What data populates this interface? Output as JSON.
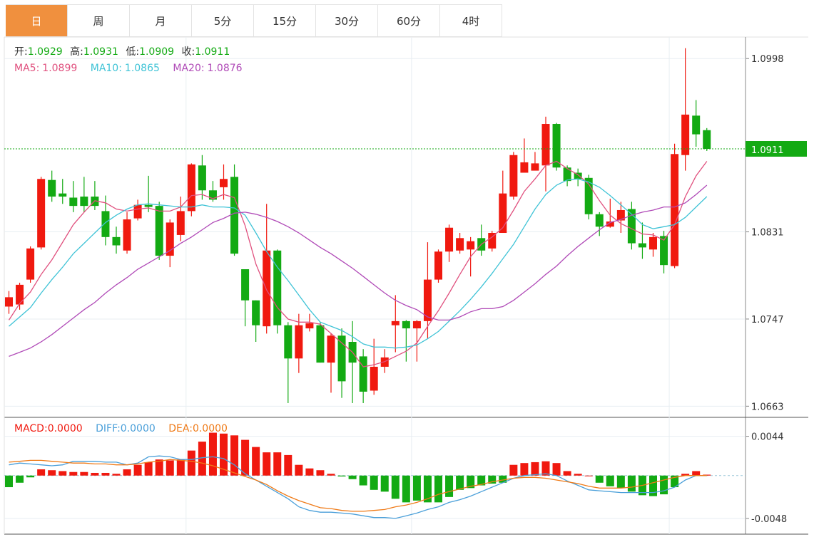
{
  "tabs": [
    {
      "label": "日",
      "active": true
    },
    {
      "label": "周",
      "active": false
    },
    {
      "label": "月",
      "active": false
    },
    {
      "label": "5分",
      "active": false
    },
    {
      "label": "15分",
      "active": false
    },
    {
      "label": "30分",
      "active": false
    },
    {
      "label": "60分",
      "active": false
    },
    {
      "label": "4时",
      "active": false
    }
  ],
  "colors": {
    "accent": "#f0903e",
    "up": "#f0190f",
    "down": "#13aa13",
    "ma5": "#e0507e",
    "ma10": "#3fc3d6",
    "ma20": "#b04ab7",
    "diff": "#4a9fd9",
    "dea": "#ef7a17",
    "last_price": "#13aa13"
  },
  "info": {
    "open_label": "开:",
    "open_value": "1.0929",
    "high_label": "高:",
    "high_value": "1.0931",
    "low_label": "低:",
    "low_value": "1.0909",
    "close_label": "收:",
    "close_value": "1.0911",
    "ma5_label": "MA5:",
    "ma5_value": "1.0899",
    "ma10_label": "MA10:",
    "ma10_value": "1.0865",
    "ma20_label": "MA20:",
    "ma20_value": "1.0876"
  },
  "macd_info": {
    "macd_label": "MACD:",
    "macd_value": "0.0000",
    "diff_label": "DIFF:",
    "diff_value": "0.0000",
    "dea_label": "DEA:",
    "dea_value": "0.0000"
  },
  "chart_data": [
    {
      "type": "candlestick",
      "yticks": [
        "1.0998",
        "1.0831",
        "1.0747",
        "1.0663"
      ],
      "ylim": [
        1.0655,
        1.1016
      ],
      "last_price": 1.0911,
      "last_price_label": "1.0911",
      "candles": [
        [
          1.0759,
          1.0768,
          1.0752,
          1.0774
        ],
        [
          1.0761,
          1.078,
          1.0756,
          1.0782
        ],
        [
          1.0785,
          1.0815,
          1.0782,
          1.0817
        ],
        [
          1.0816,
          1.0882,
          1.0814,
          1.0884
        ],
        [
          1.0881,
          1.0865,
          1.086,
          1.089
        ],
        [
          1.0868,
          1.0865,
          1.0858,
          1.0882
        ],
        [
          1.0864,
          1.0856,
          1.085,
          1.088
        ],
        [
          1.0865,
          1.0856,
          1.085,
          1.0884
        ],
        [
          1.0865,
          1.0856,
          1.0852,
          1.088
        ],
        [
          1.0851,
          1.0826,
          1.0818,
          1.0866
        ],
        [
          1.0826,
          1.0818,
          1.081,
          1.0836
        ],
        [
          1.0813,
          1.0843,
          1.081,
          1.085
        ],
        [
          1.0844,
          1.0857,
          1.0842,
          1.0862
        ],
        [
          1.0857,
          1.0855,
          1.085,
          1.0885
        ],
        [
          1.0856,
          1.0808,
          1.0804,
          1.086
        ],
        [
          1.0808,
          1.084,
          1.0797,
          1.0843
        ],
        [
          1.0828,
          1.0851,
          1.0822,
          1.0865
        ],
        [
          1.0851,
          1.0896,
          1.0846,
          1.0897
        ],
        [
          1.0895,
          1.0871,
          1.0862,
          1.0905
        ],
        [
          1.0871,
          1.0862,
          1.086,
          1.088
        ],
        [
          1.0874,
          1.0882,
          1.0862,
          1.0896
        ],
        [
          1.0884,
          1.081,
          1.0808,
          1.0896
        ],
        [
          1.0795,
          1.0765,
          1.074,
          1.0795
        ],
        [
          1.0765,
          1.0741,
          1.0725,
          1.0765
        ],
        [
          1.074,
          1.0813,
          1.0733,
          1.0858
        ],
        [
          1.0813,
          1.0741,
          1.0733,
          1.0814
        ],
        [
          1.0741,
          1.0709,
          1.0666,
          1.0744
        ],
        [
          1.0709,
          1.0741,
          1.0695,
          1.0752
        ],
        [
          1.0738,
          1.0743,
          1.0735,
          1.0752
        ],
        [
          1.0741,
          1.0705,
          1.0705,
          1.0744
        ],
        [
          1.0705,
          1.0731,
          1.0676,
          1.0733
        ],
        [
          1.0731,
          1.0687,
          1.0671,
          1.0738
        ],
        [
          1.0725,
          1.0705,
          1.0666,
          1.0745
        ],
        [
          1.0711,
          1.0677,
          1.0666,
          1.0718
        ],
        [
          1.0678,
          1.0701,
          1.0674,
          1.0728
        ],
        [
          1.0701,
          1.071,
          1.0695,
          1.0718
        ],
        [
          1.0741,
          1.0745,
          1.0715,
          1.077
        ],
        [
          1.0745,
          1.0738,
          1.0706,
          1.0746
        ],
        [
          1.0738,
          1.0745,
          1.0706,
          1.0746
        ],
        [
          1.0745,
          1.0785,
          1.0728,
          1.0821
        ],
        [
          1.0785,
          1.0812,
          1.0782,
          1.0814
        ],
        [
          1.0812,
          1.0835,
          1.0802,
          1.0838
        ],
        [
          1.0813,
          1.0825,
          1.081,
          1.083
        ],
        [
          1.0814,
          1.0822,
          1.0788,
          1.0826
        ],
        [
          1.0825,
          1.0813,
          1.0808,
          1.0838
        ],
        [
          1.0815,
          1.083,
          1.0812,
          1.0832
        ],
        [
          1.083,
          1.0868,
          1.083,
          1.089
        ],
        [
          1.0865,
          1.0905,
          1.0862,
          1.0908
        ],
        [
          1.0888,
          1.0898,
          1.0888,
          1.0921
        ],
        [
          1.089,
          1.0897,
          1.0891,
          1.0908
        ],
        [
          1.0895,
          1.0935,
          1.087,
          1.0942
        ],
        [
          1.0935,
          1.0893,
          1.089,
          1.0936
        ],
        [
          1.0893,
          1.088,
          1.0875,
          1.0895
        ],
        [
          1.0888,
          1.0882,
          1.0875,
          1.0892
        ],
        [
          1.0883,
          1.0848,
          1.0843,
          1.0886
        ],
        [
          1.0848,
          1.0836,
          1.0827,
          1.085
        ],
        [
          1.0836,
          1.0841,
          1.0835,
          1.0863
        ],
        [
          1.0842,
          1.0852,
          1.083,
          1.086
        ],
        [
          1.0853,
          1.082,
          1.0814,
          1.086
        ],
        [
          1.082,
          1.0816,
          1.0805,
          1.084
        ],
        [
          1.0814,
          1.0826,
          1.0807,
          1.083
        ],
        [
          1.0827,
          1.0799,
          1.0791,
          1.0832
        ],
        [
          1.0798,
          1.0906,
          1.0796,
          1.0916
        ],
        [
          1.0905,
          1.0944,
          1.089,
          1.1008
        ],
        [
          1.0943,
          1.0925,
          1.0913,
          1.0958
        ],
        [
          1.0929,
          1.0911,
          1.0909,
          1.0931
        ]
      ],
      "series": [
        {
          "name": "MA5",
          "values": [
            1.0746,
            1.0762,
            1.0773,
            1.079,
            1.0804,
            1.0821,
            1.0838,
            1.085,
            1.0861,
            1.0859,
            1.0853,
            1.0851,
            1.0853,
            1.0854,
            1.0851,
            1.0851,
            1.0855,
            1.0866,
            1.0867,
            1.0863,
            1.0867,
            1.0864,
            1.0837,
            1.08,
            1.0775,
            1.0758,
            1.0747,
            1.0744,
            1.0744,
            1.0742,
            1.0733,
            1.0724,
            1.0715,
            1.0701,
            1.0703,
            1.0706,
            1.0711,
            1.0716,
            1.0724,
            1.074,
            1.0755,
            1.0772,
            1.079,
            1.0807,
            1.0819,
            1.0826,
            1.0835,
            1.0852,
            1.087,
            1.0882,
            1.0895,
            1.0899,
            1.0892,
            1.0886,
            1.0877,
            1.0861,
            1.0847,
            1.0839,
            1.0834,
            1.0829,
            1.0828,
            1.0823,
            1.0838,
            1.0865,
            1.0885,
            1.0899
          ]
        },
        {
          "name": "MA10",
          "values": [
            1.074,
            1.0749,
            1.0758,
            1.0772,
            1.0785,
            1.0797,
            1.081,
            1.082,
            1.083,
            1.084,
            1.0847,
            1.0853,
            1.0857,
            1.0858,
            1.0857,
            1.0856,
            1.0855,
            1.0855,
            1.0857,
            1.0855,
            1.0855,
            1.0854,
            1.0847,
            1.083,
            1.0812,
            1.0797,
            1.0784,
            1.077,
            1.0756,
            1.0744,
            1.074,
            1.0736,
            1.073,
            1.0723,
            1.072,
            1.072,
            1.0719,
            1.072,
            1.0722,
            1.0728,
            1.0735,
            1.0745,
            1.0755,
            1.0766,
            1.0778,
            1.0791,
            1.0805,
            1.0819,
            1.0836,
            1.0853,
            1.0867,
            1.0876,
            1.0881,
            1.0882,
            1.0879,
            1.0874,
            1.0866,
            1.0857,
            1.0848,
            1.0838,
            1.0834,
            1.0836,
            1.0838,
            1.0845,
            1.0855,
            1.0865
          ]
        },
        {
          "name": "MA20",
          "values": [
            1.0711,
            1.0715,
            1.0719,
            1.0725,
            1.0732,
            1.074,
            1.0748,
            1.0756,
            1.0763,
            1.0772,
            1.078,
            1.0787,
            1.0795,
            1.0801,
            1.0807,
            1.0813,
            1.082,
            1.0826,
            1.0833,
            1.084,
            1.0844,
            1.0849,
            1.085,
            1.0848,
            1.0845,
            1.0841,
            1.0836,
            1.083,
            1.0823,
            1.0816,
            1.081,
            1.0803,
            1.0796,
            1.0788,
            1.078,
            1.0772,
            1.0765,
            1.076,
            1.0756,
            1.0749,
            1.0746,
            1.0746,
            1.0749,
            1.0754,
            1.0757,
            1.0757,
            1.0759,
            1.0765,
            1.0773,
            1.0781,
            1.079,
            1.0798,
            1.0808,
            1.0817,
            1.0825,
            1.0833,
            1.084,
            1.0843,
            1.0847,
            1.085,
            1.0852,
            1.0855,
            1.0855,
            1.0859,
            1.0867,
            1.0876
          ]
        }
      ]
    },
    {
      "type": "macd",
      "yticks": [
        "0.0044",
        "-0.0048"
      ],
      "ylim": [
        -0.0064,
        0.0062
      ],
      "zero": 0.0,
      "histogram": [
        -0.0013,
        -0.0008,
        -0.0002,
        0.0007,
        0.0006,
        0.0005,
        0.0004,
        0.0004,
        0.0003,
        0.0003,
        0.0002,
        0.0007,
        0.0012,
        0.0015,
        0.0018,
        0.0017,
        0.0018,
        0.0028,
        0.0038,
        0.0048,
        0.0047,
        0.0045,
        0.004,
        0.0032,
        0.0026,
        0.0026,
        0.0023,
        0.0012,
        0.0008,
        0.0006,
        0.0002,
        -0.0001,
        -0.0004,
        -0.0011,
        -0.0016,
        -0.0018,
        -0.0026,
        -0.003,
        -0.0028,
        -0.003,
        -0.003,
        -0.0024,
        -0.0016,
        -0.0014,
        -0.0011,
        -0.0009,
        -0.0008,
        0.0012,
        0.0014,
        0.0015,
        0.0016,
        0.0014,
        0.0005,
        0.0002,
        0.0,
        -0.0008,
        -0.0012,
        -0.0014,
        -0.0018,
        -0.0022,
        -0.0023,
        -0.0021,
        -0.0013,
        0.0002,
        0.0005,
        0.0001
      ],
      "series": [
        {
          "name": "DIFF",
          "values": [
            0.0012,
            0.0014,
            0.0013,
            0.0012,
            0.0011,
            0.0012,
            0.0016,
            0.0016,
            0.0016,
            0.0015,
            0.0015,
            0.0012,
            0.0014,
            0.0021,
            0.0022,
            0.0021,
            0.0018,
            0.0018,
            0.002,
            0.0021,
            0.0019,
            0.0012,
            0.0002,
            -0.0005,
            -0.0012,
            -0.0019,
            -0.0026,
            -0.0035,
            -0.0039,
            -0.0041,
            -0.0041,
            -0.0042,
            -0.0043,
            -0.0045,
            -0.0047,
            -0.0047,
            -0.0048,
            -0.0045,
            -0.0042,
            -0.0038,
            -0.0035,
            -0.003,
            -0.0027,
            -0.0023,
            -0.0018,
            -0.0013,
            -0.0008,
            -0.0003,
            0.0,
            0.0001,
            0.0002,
            0.0,
            -0.0006,
            -0.0011,
            -0.0016,
            -0.0017,
            -0.0018,
            -0.0019,
            -0.0019,
            -0.0019,
            -0.0019,
            -0.0017,
            -0.0013,
            -0.0005,
            0.0,
            0.0
          ]
        },
        {
          "name": "DEA",
          "values": [
            0.0015,
            0.0016,
            0.0017,
            0.0017,
            0.0016,
            0.0015,
            0.0014,
            0.0014,
            0.0013,
            0.0013,
            0.0012,
            0.0012,
            0.0013,
            0.0015,
            0.0016,
            0.0018,
            0.0017,
            0.0016,
            0.0014,
            0.0011,
            0.0007,
            0.0003,
            -0.0001,
            -0.0005,
            -0.001,
            -0.0017,
            -0.0023,
            -0.0028,
            -0.0032,
            -0.0036,
            -0.0037,
            -0.0039,
            -0.004,
            -0.004,
            -0.0039,
            -0.0038,
            -0.0035,
            -0.0033,
            -0.003,
            -0.0026,
            -0.0021,
            -0.0018,
            -0.0015,
            -0.0012,
            -0.001,
            -0.0007,
            -0.0005,
            -0.0003,
            -0.0002,
            -0.0002,
            -0.0003,
            -0.0005,
            -0.0007,
            -0.0009,
            -0.0012,
            -0.0014,
            -0.0014,
            -0.0014,
            -0.0013,
            -0.0011,
            -0.0008,
            -0.0005,
            -0.0002,
            0.0,
            0.0,
            0.0
          ]
        }
      ]
    }
  ]
}
